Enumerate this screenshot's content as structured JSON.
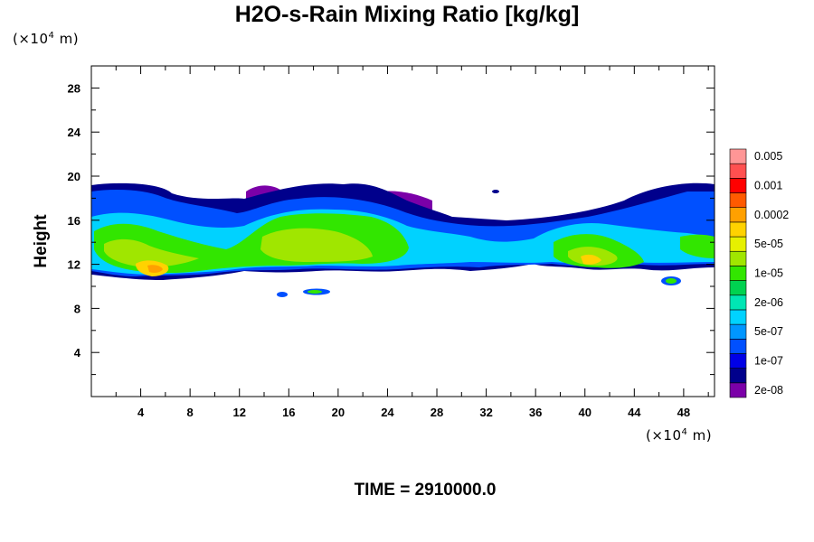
{
  "chart_data": {
    "type": "heatmap",
    "title": "H2O-s-Rain Mixing Ratio [kg/kg]",
    "ylabel": "Height",
    "x_unit": {
      "prefix": "(×10",
      "exp": "4",
      "suffix": " m)"
    },
    "y_unit": {
      "prefix": "(×10",
      "exp": "4",
      "suffix": " m)"
    },
    "xlim": [
      0,
      50.5
    ],
    "ylim": [
      0,
      30
    ],
    "x_ticks": [
      "4",
      "8",
      "12",
      "16",
      "20",
      "24",
      "28",
      "32",
      "36",
      "40",
      "44",
      "48"
    ],
    "y_ticks": [
      "4",
      "8",
      "12",
      "16",
      "20",
      "24",
      "28"
    ],
    "colorbar": {
      "colors": [
        "#7b00a8",
        "#00008c",
        "#0000e6",
        "#0050ff",
        "#0096ff",
        "#00d2ff",
        "#00e6b4",
        "#00d250",
        "#32e600",
        "#a0e600",
        "#e6f000",
        "#ffd200",
        "#ffa000",
        "#ff5a00",
        "#ff0000",
        "#ff5050",
        "#ff9696"
      ],
      "labels": [
        "2e-08",
        "1e-07",
        "5e-07",
        "2e-06",
        "1e-05",
        "5e-05",
        "0.0002",
        "0.001",
        "0.005"
      ]
    },
    "footer": "TIME = 2910000.0"
  }
}
